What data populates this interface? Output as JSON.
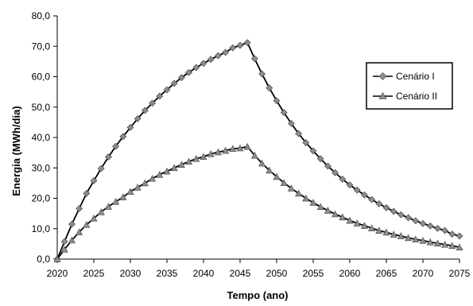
{
  "chart_data": {
    "type": "line",
    "title": "",
    "xlabel": "Tempo (ano)",
    "ylabel": "Energia (MWh/dia)",
    "xlim": [
      2020,
      2075
    ],
    "ylim": [
      0,
      80
    ],
    "x_ticks": [
      "2020",
      "2025",
      "2030",
      "2035",
      "2040",
      "2045",
      "2050",
      "2055",
      "2060",
      "2065",
      "2070",
      "2075"
    ],
    "y_ticks": [
      "0,0",
      "10,0",
      "20,0",
      "30,0",
      "40,0",
      "50,0",
      "60,0",
      "70,0",
      "80,0"
    ],
    "grid": false,
    "legend_position": "right",
    "x": [
      2020,
      2021,
      2022,
      2023,
      2024,
      2025,
      2026,
      2027,
      2028,
      2029,
      2030,
      2031,
      2032,
      2033,
      2034,
      2035,
      2036,
      2037,
      2038,
      2039,
      2040,
      2041,
      2042,
      2043,
      2044,
      2045,
      2046,
      2047,
      2048,
      2049,
      2050,
      2051,
      2052,
      2053,
      2054,
      2055,
      2056,
      2057,
      2058,
      2059,
      2060,
      2061,
      2062,
      2063,
      2064,
      2065,
      2066,
      2067,
      2068,
      2069,
      2070,
      2071,
      2072,
      2073,
      2074,
      2075
    ],
    "series": [
      {
        "name": "Cenário I",
        "marker": "diamond",
        "color": "#000000",
        "marker_color": "#8c8c8c",
        "values": [
          0.0,
          5.8,
          11.5,
          16.6,
          21.6,
          25.8,
          29.8,
          33.6,
          37.1,
          40.3,
          43.3,
          46.2,
          48.9,
          51.3,
          53.6,
          55.7,
          57.8,
          59.7,
          61.4,
          63.0,
          64.4,
          65.7,
          66.9,
          68.0,
          69.5,
          70.3,
          71.2,
          65.9,
          60.9,
          56.3,
          52.1,
          48.2,
          44.6,
          41.3,
          38.3,
          35.6,
          33.0,
          30.6,
          28.4,
          26.3,
          24.4,
          22.7,
          21.1,
          19.6,
          18.2,
          16.9,
          15.7,
          14.6,
          13.6,
          12.6,
          11.7,
          10.9,
          10.1,
          9.4,
          8.2,
          7.6
        ]
      },
      {
        "name": "Cenário II",
        "marker": "triangle",
        "color": "#000000",
        "marker_color": "#8c8c8c",
        "values": [
          0.0,
          3.2,
          6.2,
          8.9,
          11.3,
          13.4,
          15.5,
          17.3,
          18.9,
          20.4,
          22.2,
          23.6,
          25.0,
          26.5,
          27.8,
          28.9,
          30.0,
          31.1,
          32.1,
          33.0,
          33.7,
          34.6,
          35.2,
          35.7,
          36.3,
          36.5,
          37.0,
          34.1,
          31.5,
          29.2,
          27.1,
          25.1,
          23.3,
          21.6,
          20.0,
          18.6,
          17.2,
          16.0,
          14.8,
          13.8,
          12.7,
          11.8,
          11.0,
          10.2,
          9.4,
          8.8,
          8.1,
          7.6,
          7.0,
          6.5,
          6.1,
          5.6,
          5.2,
          4.8,
          4.4,
          3.9
        ]
      }
    ]
  }
}
